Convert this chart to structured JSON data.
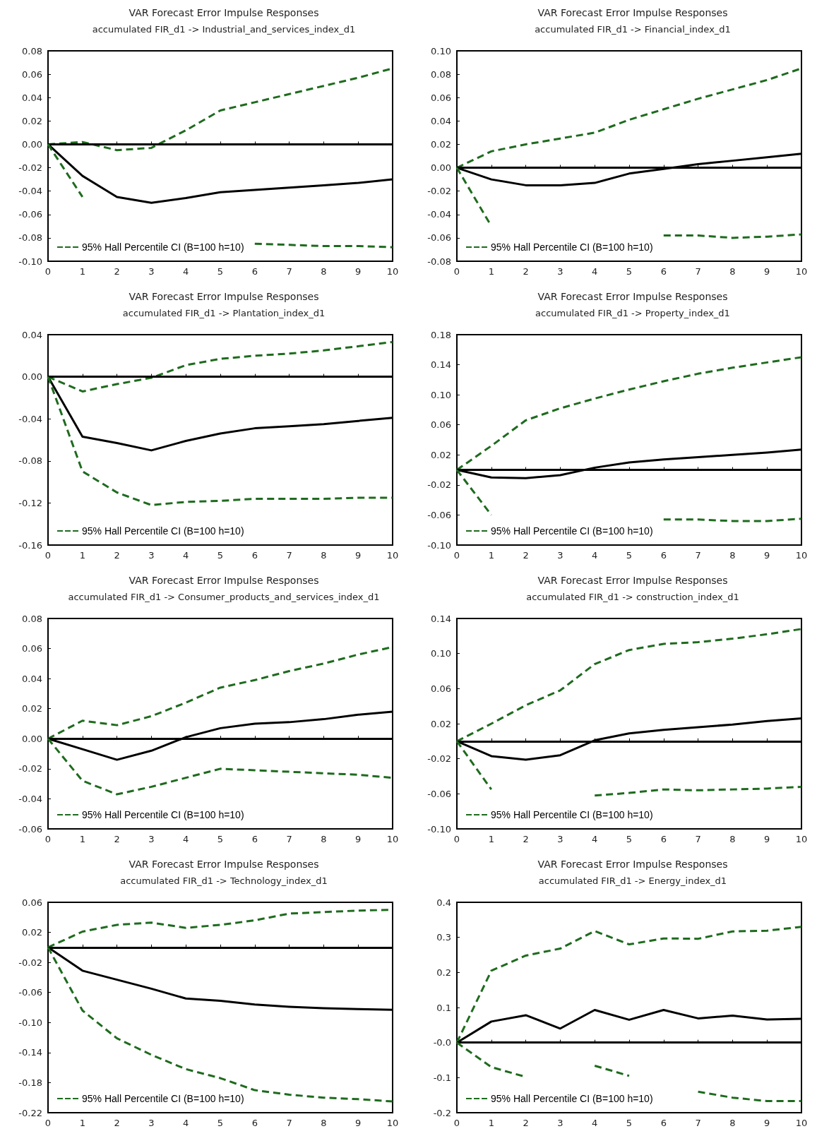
{
  "chart_data": [
    {
      "type": "line",
      "title": "VAR Forecast Error Impulse Responses",
      "subtitle": "accumulated FIR_d1 -> Industrial_and_services_index_d1",
      "x": [
        0,
        1,
        2,
        3,
        4,
        5,
        6,
        7,
        8,
        9,
        10
      ],
      "xlim": [
        0,
        10
      ],
      "xticks": [
        0,
        1,
        2,
        3,
        4,
        5,
        6,
        7,
        8,
        9,
        10
      ],
      "ylim": [
        -0.1,
        0.08
      ],
      "yticks": [
        {
          "value": -0.1,
          "label": "-0.10"
        },
        -0.08,
        -0.06,
        -0.04,
        -0.02,
        {
          "value": 0,
          "label": "0.00"
        },
        0.02,
        0.04,
        0.06,
        0.08
      ],
      "marker": "none",
      "legend": "bottom left",
      "ref_lines": [
        {
          "axis": "y",
          "value": 0,
          "color": "#000000"
        }
      ],
      "series": [
        {
          "color": "#000000",
          "line_style": "solid",
          "values": [
            0,
            -0.027,
            -0.045,
            -0.05,
            -0.046,
            -0.041,
            -0.039,
            -0.037,
            -0.035,
            -0.033,
            -0.03
          ]
        },
        {
          "name": "95% Hall Percentile CI (B=100 h=10)",
          "color": "#1e6b1e",
          "line_style": "dashed",
          "values": [
            0,
            0.002,
            -0.005,
            -0.003,
            0.012,
            0.029,
            0.036,
            0.043,
            0.05,
            0.057,
            0.065
          ]
        },
        {
          "color": "#1e6b1e",
          "line_style": "dashed",
          "values": [
            0,
            -0.045,
            null,
            null,
            null,
            null,
            -0.085,
            -0.086,
            -0.087,
            -0.087,
            -0.088
          ]
        }
      ]
    },
    {
      "type": "line",
      "title": "VAR Forecast Error Impulse Responses",
      "subtitle": "accumulated FIR_d1 -> Financial_index_d1",
      "x": [
        0,
        1,
        2,
        3,
        4,
        5,
        6,
        7,
        8,
        9,
        10
      ],
      "xlim": [
        0,
        10
      ],
      "xticks": [
        0,
        1,
        2,
        3,
        4,
        5,
        6,
        7,
        8,
        9,
        10
      ],
      "ylim": [
        -0.08,
        0.1
      ],
      "yticks": [
        -0.08,
        -0.06,
        -0.04,
        -0.02,
        {
          "value": 0,
          "label": "0.00"
        },
        0.02,
        0.04,
        0.06,
        0.08,
        {
          "value": 0.1,
          "label": "0.10"
        }
      ],
      "marker": "none",
      "legend": "bottom left",
      "ref_lines": [
        {
          "axis": "y",
          "value": 0,
          "color": "#000000"
        }
      ],
      "series": [
        {
          "color": "#000000",
          "line_style": "solid",
          "values": [
            0,
            -0.01,
            -0.015,
            -0.015,
            -0.013,
            -0.005,
            -0.001,
            0.003,
            0.006,
            0.009,
            0.012
          ]
        },
        {
          "name": "95% Hall Percentile CI (B=100 h=10)",
          "color": "#1e6b1e",
          "line_style": "dashed",
          "values": [
            0,
            0.014,
            0.02,
            0.025,
            0.03,
            0.041,
            0.05,
            0.059,
            0.067,
            0.075,
            0.085
          ]
        },
        {
          "color": "#1e6b1e",
          "line_style": "dashed",
          "values": [
            0,
            -0.05,
            null,
            null,
            null,
            null,
            -0.058,
            -0.058,
            -0.06,
            -0.059,
            -0.057
          ]
        }
      ]
    },
    {
      "type": "line",
      "title": "VAR Forecast Error Impulse Responses",
      "subtitle": "accumulated FIR_d1 -> Plantation_index_d1",
      "x": [
        0,
        1,
        2,
        3,
        4,
        5,
        6,
        7,
        8,
        9,
        10
      ],
      "xlim": [
        0,
        10
      ],
      "xticks": [
        0,
        1,
        2,
        3,
        4,
        5,
        6,
        7,
        8,
        9,
        10
      ],
      "ylim": [
        -0.16,
        0.04
      ],
      "yticks": [
        -0.16,
        -0.12,
        -0.08,
        -0.04,
        {
          "value": 0,
          "label": "0.00"
        },
        0.04
      ],
      "marker": "none",
      "legend": "bottom left",
      "ref_lines": [
        {
          "axis": "y",
          "value": 0,
          "color": "#000000"
        }
      ],
      "series": [
        {
          "color": "#000000",
          "line_style": "solid",
          "values": [
            0,
            -0.057,
            -0.063,
            -0.07,
            -0.061,
            -0.054,
            -0.049,
            -0.047,
            -0.045,
            -0.042,
            -0.039
          ]
        },
        {
          "name": "95% Hall Percentile CI (B=100 h=10)",
          "color": "#1e6b1e",
          "line_style": "dashed",
          "values": [
            0,
            -0.014,
            -0.007,
            -0.001,
            0.011,
            0.017,
            0.02,
            0.022,
            0.025,
            0.029,
            0.033
          ]
        },
        {
          "color": "#1e6b1e",
          "line_style": "dashed",
          "values": [
            0,
            -0.09,
            -0.11,
            -0.122,
            -0.119,
            -0.118,
            -0.116,
            -0.116,
            -0.116,
            -0.115,
            -0.115
          ]
        }
      ]
    },
    {
      "type": "line",
      "title": "VAR Forecast Error Impulse Responses",
      "subtitle": "accumulated FIR_d1 -> Property_index_d1",
      "x": [
        0,
        1,
        2,
        3,
        4,
        5,
        6,
        7,
        8,
        9,
        10
      ],
      "xlim": [
        0,
        10
      ],
      "xticks": [
        0,
        1,
        2,
        3,
        4,
        5,
        6,
        7,
        8,
        9,
        10
      ],
      "ylim": [
        -0.1,
        0.18
      ],
      "yticks": [
        {
          "value": -0.1,
          "label": "-0.10"
        },
        -0.06,
        -0.02,
        0.02,
        0.06,
        {
          "value": 0.1,
          "label": "0.10"
        },
        0.14,
        0.18
      ],
      "marker": "none",
      "legend": "bottom left",
      "ref_lines": [
        {
          "axis": "y",
          "value": 0,
          "color": "#000000"
        }
      ],
      "series": [
        {
          "color": "#000000",
          "line_style": "solid",
          "values": [
            0,
            -0.01,
            -0.011,
            -0.007,
            0.003,
            0.01,
            0.014,
            0.017,
            0.02,
            0.023,
            0.027
          ]
        },
        {
          "name": "95% Hall Percentile CI (B=100 h=10)",
          "color": "#1e6b1e",
          "line_style": "dashed",
          "values": [
            0,
            0.032,
            0.066,
            0.082,
            0.095,
            0.107,
            0.118,
            0.128,
            0.136,
            0.143,
            0.15
          ]
        },
        {
          "color": "#1e6b1e",
          "line_style": "dashed",
          "values": [
            0,
            -0.06,
            null,
            null,
            null,
            null,
            -0.066,
            -0.066,
            -0.068,
            -0.068,
            -0.065
          ]
        }
      ]
    },
    {
      "type": "line",
      "title": "VAR Forecast Error Impulse Responses",
      "subtitle": "accumulated FIR_d1 -> Consumer_products_and_services_index_d1",
      "x": [
        0,
        1,
        2,
        3,
        4,
        5,
        6,
        7,
        8,
        9,
        10
      ],
      "xlim": [
        0,
        10
      ],
      "xticks": [
        0,
        1,
        2,
        3,
        4,
        5,
        6,
        7,
        8,
        9,
        10
      ],
      "ylim": [
        -0.06,
        0.08
      ],
      "yticks": [
        -0.06,
        -0.04,
        -0.02,
        {
          "value": 0,
          "label": "0.00"
        },
        0.02,
        0.04,
        0.06,
        0.08
      ],
      "marker": "none",
      "legend": "bottom left",
      "ref_lines": [
        {
          "axis": "y",
          "value": 0,
          "color": "#000000"
        }
      ],
      "series": [
        {
          "color": "#000000",
          "line_style": "solid",
          "values": [
            0,
            -0.007,
            -0.014,
            -0.008,
            0.001,
            0.007,
            0.01,
            0.011,
            0.013,
            0.016,
            0.018
          ]
        },
        {
          "name": "95% Hall Percentile CI (B=100 h=10)",
          "color": "#1e6b1e",
          "line_style": "dashed",
          "values": [
            0,
            0.012,
            0.009,
            0.015,
            0.024,
            0.034,
            0.039,
            0.045,
            0.05,
            0.056,
            0.061
          ]
        },
        {
          "color": "#1e6b1e",
          "line_style": "dashed",
          "values": [
            0,
            -0.028,
            -0.037,
            -0.032,
            -0.026,
            -0.02,
            -0.021,
            -0.022,
            -0.023,
            -0.024,
            -0.026
          ]
        }
      ]
    },
    {
      "type": "line",
      "title": "VAR Forecast Error Impulse Responses",
      "subtitle": "accumulated FIR_d1 -> construction_index_d1",
      "x": [
        0,
        1,
        2,
        3,
        4,
        5,
        6,
        7,
        8,
        9,
        10
      ],
      "xlim": [
        0,
        10
      ],
      "xticks": [
        0,
        1,
        2,
        3,
        4,
        5,
        6,
        7,
        8,
        9,
        10
      ],
      "ylim": [
        -0.1,
        0.14
      ],
      "yticks": [
        {
          "value": -0.1,
          "label": "-0.10"
        },
        -0.06,
        -0.02,
        0.02,
        0.06,
        {
          "value": 0.1,
          "label": "0.10"
        },
        0.14
      ],
      "marker": "none",
      "legend": "bottom left",
      "ref_lines": [
        {
          "axis": "y",
          "value": 0,
          "color": "#000000"
        }
      ],
      "series": [
        {
          "color": "#000000",
          "line_style": "solid",
          "values": [
            0,
            -0.017,
            -0.021,
            -0.016,
            0.001,
            0.009,
            0.013,
            0.016,
            0.019,
            0.023,
            0.026
          ]
        },
        {
          "name": "95% Hall Percentile CI (B=100 h=10)",
          "color": "#1e6b1e",
          "line_style": "dashed",
          "values": [
            0,
            0.02,
            0.041,
            0.058,
            0.088,
            0.104,
            0.111,
            0.113,
            0.117,
            0.122,
            0.128
          ]
        },
        {
          "color": "#1e6b1e",
          "line_style": "dashed",
          "values": [
            0,
            -0.055,
            null,
            null,
            -0.062,
            -0.059,
            -0.055,
            -0.056,
            -0.055,
            -0.054,
            -0.052
          ]
        }
      ]
    },
    {
      "type": "line",
      "title": "VAR Forecast Error Impulse Responses",
      "subtitle": "accumulated FIR_d1 -> Technology_index_d1",
      "x": [
        0,
        1,
        2,
        3,
        4,
        5,
        6,
        7,
        8,
        9,
        10
      ],
      "xlim": [
        0,
        10
      ],
      "xticks": [
        0,
        1,
        2,
        3,
        4,
        5,
        6,
        7,
        8,
        9,
        10
      ],
      "ylim": [
        -0.22,
        0.06
      ],
      "yticks": [
        -0.22,
        -0.18,
        -0.14,
        {
          "value": -0.1,
          "label": "-0.10"
        },
        -0.06,
        -0.02,
        0.02,
        0.06
      ],
      "marker": "none",
      "legend": "bottom left",
      "ref_lines": [
        {
          "axis": "y",
          "value": 0,
          "color": "#000000"
        }
      ],
      "series": [
        {
          "color": "#000000",
          "line_style": "solid",
          "values": [
            0,
            -0.031,
            -0.043,
            -0.055,
            -0.068,
            -0.071,
            -0.076,
            -0.079,
            -0.081,
            -0.082,
            -0.083
          ]
        },
        {
          "name": "95% Hall Percentile CI (B=100 h=10)",
          "color": "#1e6b1e",
          "line_style": "dashed",
          "values": [
            0,
            0.021,
            0.03,
            0.033,
            0.026,
            0.03,
            0.036,
            0.045,
            0.047,
            0.049,
            0.05
          ]
        },
        {
          "color": "#1e6b1e",
          "line_style": "dashed",
          "values": [
            0,
            -0.084,
            -0.121,
            -0.143,
            -0.162,
            -0.174,
            -0.19,
            -0.196,
            -0.2,
            -0.202,
            -0.205
          ]
        }
      ]
    },
    {
      "type": "line",
      "title": "VAR Forecast Error Impulse Responses",
      "subtitle": "accumulated FIR_d1 -> Energy_index_d1",
      "x": [
        0,
        1,
        2,
        3,
        4,
        5,
        6,
        7,
        8,
        9,
        10
      ],
      "xlim": [
        0,
        10
      ],
      "xticks": [
        0,
        1,
        2,
        3,
        4,
        5,
        6,
        7,
        8,
        9,
        10
      ],
      "ylim": [
        -0.2,
        0.4
      ],
      "yticks": [
        -0.2,
        -0.1,
        {
          "value": 0,
          "label": "-0.0"
        },
        0.1,
        0.2,
        0.3,
        0.4
      ],
      "marker": "none",
      "legend": "bottom left",
      "ref_lines": [
        {
          "axis": "y",
          "value": 0,
          "color": "#000000"
        }
      ],
      "series": [
        {
          "color": "#000000",
          "line_style": "solid",
          "values": [
            0,
            0.06,
            0.078,
            0.04,
            0.093,
            0.065,
            0.093,
            0.069,
            0.077,
            0.066,
            0.068
          ]
        },
        {
          "name": "95% Hall Percentile CI (B=100 h=10)",
          "color": "#1e6b1e",
          "line_style": "dashed",
          "values": [
            0,
            0.205,
            0.248,
            0.268,
            0.318,
            0.28,
            0.297,
            0.296,
            0.317,
            0.319,
            0.33
          ]
        },
        {
          "color": "#1e6b1e",
          "line_style": "dashed",
          "values": [
            0,
            -0.07,
            -0.098,
            null,
            -0.066,
            -0.095,
            null,
            -0.14,
            -0.157,
            -0.167,
            -0.167
          ]
        }
      ]
    }
  ]
}
